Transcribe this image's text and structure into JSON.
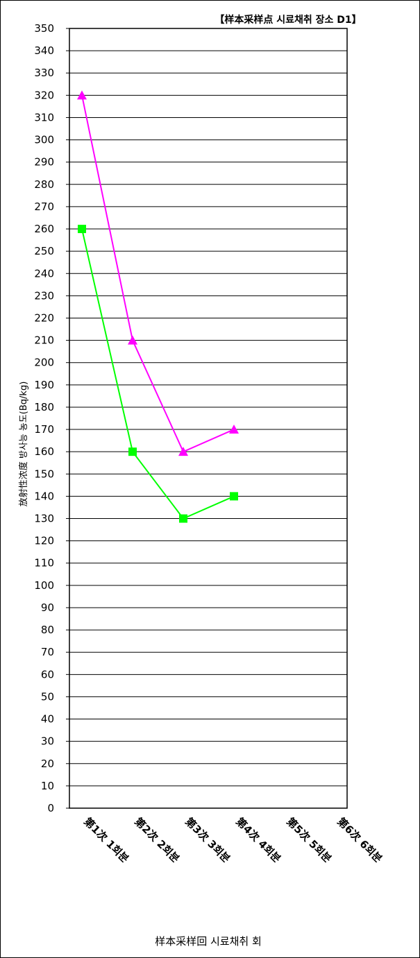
{
  "chart_data": {
    "type": "line",
    "title": "【样本采样点  시료채취 장소  D1】",
    "xlabel": "样本采样回  시료채취 회",
    "ylabel": "放射性浓度  방사능 농도(Bq/kg)",
    "categories": [
      "第1次  1회분",
      "第2次  2회분",
      "第3次  3회분",
      "第4次  4회분",
      "第5次  5회분",
      "第6次  6회분"
    ],
    "ylim": [
      0,
      350
    ],
    "ytick_step": 10,
    "grid": true,
    "legend": "none",
    "series": [
      {
        "marker": "triangle",
        "color": "#ff00ff",
        "values": [
          320,
          210,
          160,
          170,
          null,
          null
        ]
      },
      {
        "marker": "square",
        "color": "#00ff00",
        "values": [
          260,
          160,
          130,
          140,
          null,
          null
        ]
      }
    ]
  }
}
